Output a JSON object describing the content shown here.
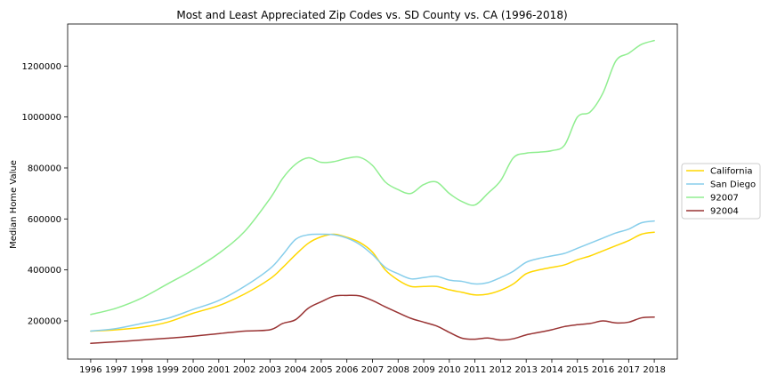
{
  "chart_data": {
    "type": "line",
    "title": "Most and Least Appreciated Zip Codes vs. SD County vs. CA (1996-2018)",
    "xlabel": "",
    "ylabel": "Median Home Value",
    "xlim": [
      1995.1,
      2018.9
    ],
    "ylim": [
      50000,
      1365000
    ],
    "xticks": [
      1996,
      1997,
      1998,
      1999,
      2000,
      2001,
      2002,
      2003,
      2004,
      2005,
      2006,
      2007,
      2008,
      2009,
      2010,
      2011,
      2012,
      2013,
      2014,
      2015,
      2016,
      2017,
      2018
    ],
    "xtick_labels": [
      "1996",
      "1997",
      "1998",
      "1999",
      "2000",
      "2001",
      "2002",
      "2003",
      "2004",
      "2005",
      "2006",
      "2007",
      "2008",
      "2009",
      "2010",
      "2011",
      "2012",
      "2013",
      "2014",
      "2015",
      "2016",
      "2017",
      "2018"
    ],
    "yticks": [
      200000,
      400000,
      600000,
      800000,
      1000000,
      1200000
    ],
    "ytick_labels": [
      "200000",
      "400000",
      "600000",
      "800000",
      "1000000",
      "1200000"
    ],
    "grid": false,
    "legend_position": "right",
    "series": [
      {
        "name": "California",
        "color": "#FFD700",
        "x": [
          1996,
          1997,
          1998,
          1999,
          2000,
          2001,
          2002,
          2003,
          2003.5,
          2004,
          2004.5,
          2005,
          2005.5,
          2006,
          2006.5,
          2007,
          2007.5,
          2008,
          2008.5,
          2009,
          2009.5,
          2010,
          2010.5,
          2011,
          2011.5,
          2012,
          2012.5,
          2013,
          2013.5,
          2014,
          2014.5,
          2015,
          2015.5,
          2016,
          2016.5,
          2017,
          2017.5,
          2018
        ],
        "y": [
          160000,
          165000,
          175000,
          195000,
          230000,
          260000,
          305000,
          365000,
          410000,
          460000,
          505000,
          530000,
          540000,
          528000,
          508000,
          470000,
          400000,
          360000,
          335000,
          335000,
          335000,
          322000,
          312000,
          302000,
          305000,
          320000,
          345000,
          385000,
          400000,
          410000,
          420000,
          440000,
          455000,
          475000,
          495000,
          515000,
          540000,
          548000
        ]
      },
      {
        "name": "San Diego",
        "color": "#87CEEB",
        "x": [
          1996,
          1997,
          1998,
          1999,
          2000,
          2001,
          2002,
          2003,
          2003.5,
          2004,
          2004.5,
          2005,
          2005.5,
          2006,
          2006.5,
          2007,
          2007.5,
          2008,
          2008.5,
          2009,
          2009.5,
          2010,
          2010.5,
          2011,
          2011.5,
          2012,
          2012.5,
          2013,
          2013.5,
          2014,
          2014.5,
          2015,
          2015.5,
          2016,
          2016.5,
          2017,
          2017.5,
          2018
        ],
        "y": [
          160000,
          170000,
          190000,
          210000,
          245000,
          280000,
          335000,
          405000,
          460000,
          520000,
          538000,
          540000,
          538000,
          525000,
          500000,
          460000,
          410000,
          385000,
          365000,
          370000,
          375000,
          360000,
          355000,
          345000,
          350000,
          370000,
          395000,
          430000,
          445000,
          455000,
          465000,
          485000,
          505000,
          525000,
          545000,
          560000,
          585000,
          592000
        ]
      },
      {
        "name": "92007",
        "color": "#90EE90",
        "x": [
          1996,
          1997,
          1998,
          1999,
          2000,
          2001,
          2002,
          2003,
          2003.5,
          2004,
          2004.5,
          2005,
          2005.5,
          2006,
          2006.5,
          2007,
          2007.5,
          2008,
          2008.5,
          2009,
          2009.5,
          2010,
          2010.5,
          2011,
          2011.5,
          2012,
          2012.5,
          2013,
          2013.5,
          2014,
          2014.5,
          2015,
          2015.5,
          2016,
          2016.5,
          2017,
          2017.5,
          2018
        ],
        "y": [
          225000,
          250000,
          290000,
          345000,
          400000,
          465000,
          550000,
          680000,
          760000,
          815000,
          840000,
          822000,
          825000,
          838000,
          842000,
          810000,
          745000,
          715000,
          700000,
          735000,
          745000,
          700000,
          668000,
          655000,
          700000,
          750000,
          840000,
          858000,
          862000,
          868000,
          890000,
          1000000,
          1020000,
          1095000,
          1220000,
          1250000,
          1285000,
          1300000
        ]
      },
      {
        "name": "92004",
        "color": "#993333",
        "x": [
          1996,
          1997,
          1998,
          1999,
          2000,
          2001,
          2002,
          2003,
          2003.5,
          2004,
          2004.5,
          2005,
          2005.5,
          2006,
          2006.5,
          2007,
          2007.5,
          2008,
          2008.5,
          2009,
          2009.5,
          2010,
          2010.5,
          2011,
          2011.5,
          2012,
          2012.5,
          2013,
          2013.5,
          2014,
          2014.5,
          2015,
          2015.5,
          2016,
          2016.5,
          2017,
          2017.5,
          2018
        ],
        "y": [
          112000,
          118000,
          125000,
          132000,
          140000,
          150000,
          160000,
          165000,
          190000,
          205000,
          250000,
          275000,
          297000,
          300000,
          298000,
          280000,
          255000,
          232000,
          210000,
          195000,
          180000,
          155000,
          132000,
          128000,
          133000,
          125000,
          130000,
          145000,
          155000,
          165000,
          178000,
          185000,
          190000,
          200000,
          192000,
          195000,
          212000,
          215000
        ]
      }
    ]
  }
}
